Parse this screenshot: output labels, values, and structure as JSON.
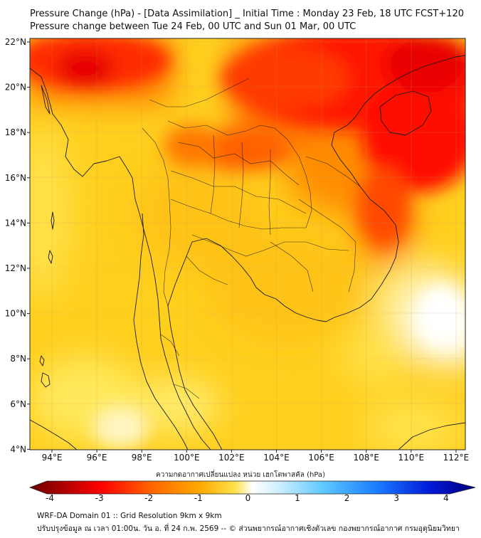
{
  "title": {
    "line1": "Pressure Change (hPa) - [Data Assimilation] _ Initial Time : Monday 23 Feb, 18 UTC FCST+120",
    "line2": "Pressure change between Tue 24 Feb, 00 UTC and Sun 01 Mar, 00 UTC"
  },
  "map": {
    "lon_labels": [
      "94°E",
      "96°E",
      "98°E",
      "100°E",
      "102°E",
      "104°E",
      "106°E",
      "108°E",
      "110°E",
      "112°E"
    ],
    "lat_labels": [
      "22°N",
      "20°N",
      "18°N",
      "16°N",
      "14°N",
      "12°N",
      "10°N",
      "8°N",
      "6°N",
      "4°N"
    ]
  },
  "colorbar": {
    "label": "ความกดอากาศเปลี่ยนแปลง หน่วย เฮกโตพาสคัล (hPa)",
    "ticks": [
      "-4",
      "-3",
      "-2",
      "-1",
      "0",
      "1",
      "2",
      "3",
      "4"
    ],
    "colors": {
      "neg_strong": "#7a0000",
      "neg": "#ff0000",
      "mid": "#ffd21a",
      "zero": "#ffffff",
      "pos": "#29a8ff",
      "pos_strong": "#00007a"
    }
  },
  "footer": {
    "line1": "WRF-DA Domain 01 :: Grid Resolution 9km x 9km",
    "line2": "ปรับปรุงข้อมูล ณ เวลา 01:00น. วัน อ. ที่ 24 ก.พ. 2569 -- © ส่วนพยากรณ์อากาศเชิงตัวเลข กองพยากรณ์อากาศ กรมอุตุนิยมวิทยา"
  }
}
